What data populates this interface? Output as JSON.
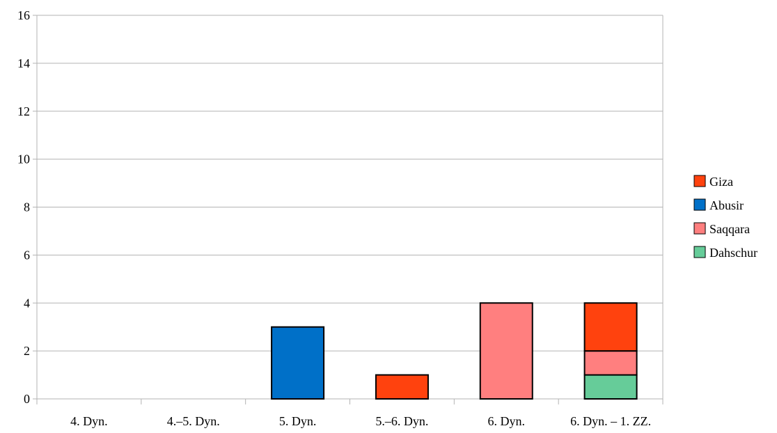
{
  "chart_data": {
    "type": "bar",
    "stacked": true,
    "title": "",
    "xlabel": "",
    "ylabel": "",
    "categories": [
      "4. Dyn.",
      "4.–5. Dyn.",
      "5. Dyn.",
      "5.–6. Dyn.",
      "6. Dyn.",
      "6. Dyn. – 1. ZZ."
    ],
    "ylim": [
      0,
      16
    ],
    "yticks": [
      0,
      2,
      4,
      6,
      8,
      10,
      12,
      14,
      16
    ],
    "grid": true,
    "legend_position": "right",
    "series": [
      {
        "name": "Dahschur",
        "color": "#66cc99",
        "values": [
          0,
          0,
          0,
          0,
          0,
          1
        ]
      },
      {
        "name": "Saqqara",
        "color": "#ff7f7f",
        "values": [
          0,
          0,
          0,
          0,
          4,
          1
        ]
      },
      {
        "name": "Abusir",
        "color": "#0070c8",
        "values": [
          0,
          0,
          3,
          0,
          0,
          0
        ]
      },
      {
        "name": "Giza",
        "color": "#ff420e",
        "values": [
          0,
          0,
          0,
          1,
          0,
          2
        ]
      }
    ],
    "legend_order": [
      "Giza",
      "Abusir",
      "Saqqara",
      "Dahschur"
    ]
  }
}
